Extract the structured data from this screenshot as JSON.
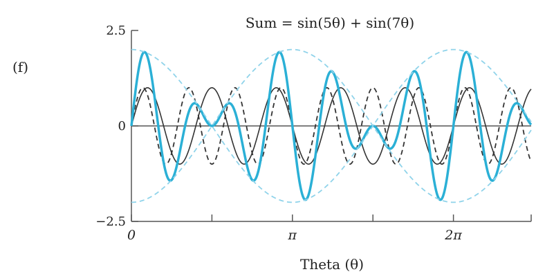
{
  "panel_label": "(f)",
  "chart_data": {
    "type": "line",
    "title": "Sum = sin(5θ) + sin(7θ)",
    "xlabel": "Theta (θ)",
    "ylabel": "",
    "xlim": [
      0,
      7.8
    ],
    "ylim": [
      -2.5,
      2.5
    ],
    "y_ticks": [
      {
        "value": 2.5,
        "label": "2.5"
      },
      {
        "value": 0,
        "label": "0"
      },
      {
        "value": -2.5,
        "label": "−2.5"
      }
    ],
    "x_ticks": [
      {
        "value": 0,
        "label": "0"
      },
      {
        "value": 1.5708,
        "label": ""
      },
      {
        "value": 3.1416,
        "label": "π"
      },
      {
        "value": 4.7124,
        "label": ""
      },
      {
        "value": 6.2832,
        "label": "2π"
      },
      {
        "value": 7.8,
        "label": ""
      }
    ],
    "grid": false,
    "series": [
      {
        "expr": "sin(5θ)",
        "color": "#333333",
        "style": "solid",
        "amplitude": 1,
        "frequency": 5
      },
      {
        "expr": "sin(7θ)",
        "color": "#333333",
        "style": "dashed",
        "amplitude": 1,
        "frequency": 7
      },
      {
        "expr": "sin(5θ) + sin(7θ)",
        "color": "#2bb0d6",
        "style": "solid-thick",
        "components": [
          5,
          7
        ]
      },
      {
        "expr": "±2cos(θ)",
        "color": "#8fd3ea",
        "style": "dashed",
        "envelope_amplitude": 2,
        "envelope_frequency": 1
      }
    ]
  }
}
